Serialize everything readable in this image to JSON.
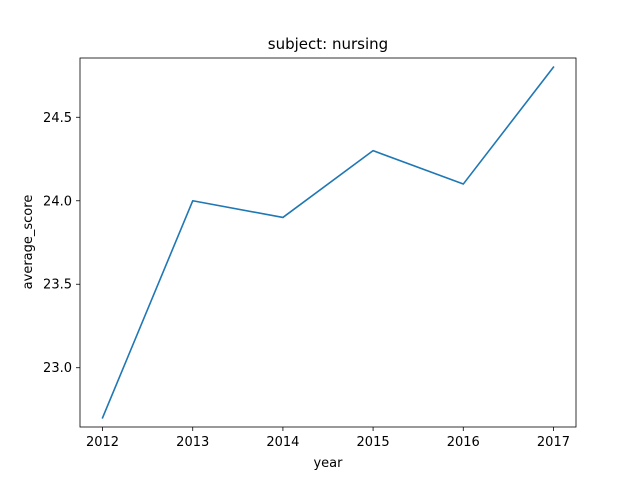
{
  "chart_data": {
    "type": "line",
    "title": "subject: nursing",
    "xlabel": "year",
    "ylabel": "average_score",
    "x": [
      2012,
      2013,
      2014,
      2015,
      2016,
      2017
    ],
    "series": [
      {
        "values": [
          22.7,
          24.0,
          23.9,
          24.3,
          24.1,
          24.8
        ],
        "color": "#1f77b4"
      }
    ],
    "xticks": [
      "2012",
      "2013",
      "2014",
      "2015",
      "2016",
      "2017"
    ],
    "yticks": [
      "23.0",
      "23.5",
      "24.0",
      "24.5"
    ],
    "ytick_values": [
      23.0,
      23.5,
      24.0,
      24.5
    ],
    "xlim": [
      2011.75,
      2017.25
    ],
    "ylim": [
      22.645,
      24.855
    ],
    "grid": false,
    "legend": "none"
  }
}
